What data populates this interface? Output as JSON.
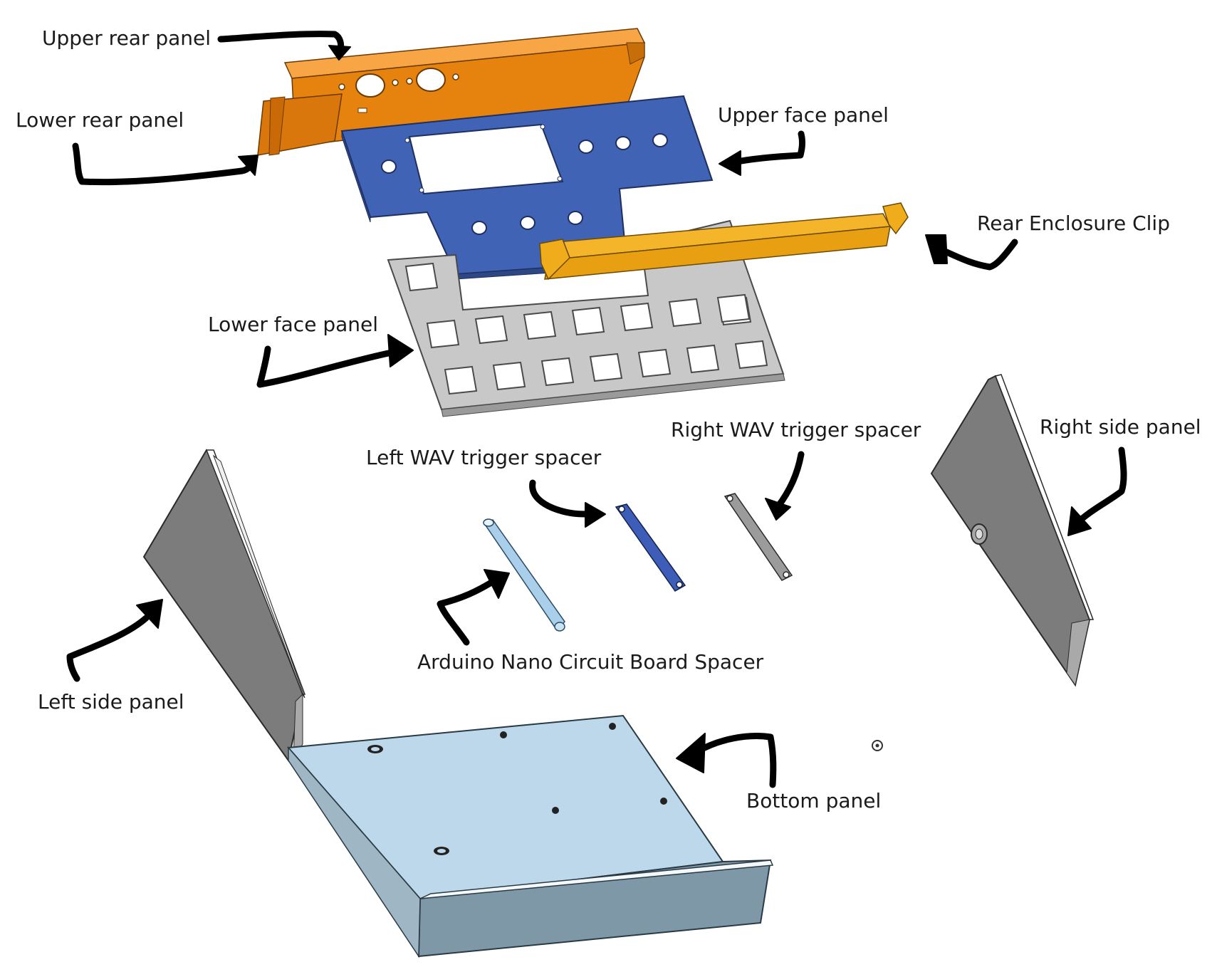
{
  "labels": {
    "upper_rear_panel": "Upper rear panel",
    "lower_rear_panel": "Lower rear panel",
    "upper_face_panel": "Upper face panel",
    "rear_enclosure_clip": "Rear Enclosure Clip",
    "lower_face_panel": "Lower face panel",
    "right_wav_trigger_spacer": "Right WAV trigger spacer",
    "left_wav_trigger_spacer": "Left WAV trigger spacer",
    "right_side_panel": "Right side panel",
    "arduino_nano_spacer": "Arduino Nano Circuit Board Spacer",
    "left_side_panel": "Left side panel",
    "bottom_panel": "Bottom panel"
  },
  "colors": {
    "rear_panel": "#e6820e",
    "face_panel": "#4163b5",
    "clip": "#f0ac1a",
    "lower_face": "#c8c8c8",
    "side_panel": "#7c7c7c",
    "bottom": "#bdd8ea",
    "bottom_front": "#7f98a8",
    "nano_spacer": "#a9cfea",
    "wav_spacer_left": "#3d5db8",
    "wav_spacer_right": "#9b9b9b",
    "arrow": "#000000"
  }
}
